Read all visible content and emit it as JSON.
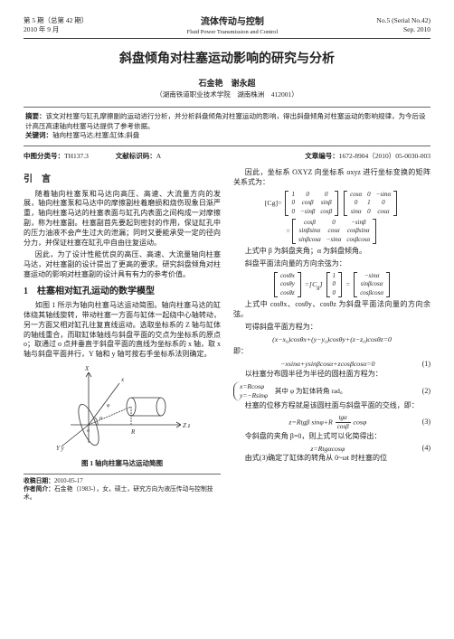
{
  "header": {
    "issue_cn": "第 5 期（总第 42 期）",
    "date_cn": "2010 年 9 月",
    "journal_cn": "流体传动与控制",
    "journal_en": "Fluid Power Transmission and Control",
    "issue_en": "No.5 (Serial No.42)",
    "date_en": "Sep. 2010"
  },
  "title": "斜盘倾角对柱塞运动影响的研究与分析",
  "authors": "石金艳　谢永超",
  "affiliation": "（湖南铁道职业技术学院　湖南株洲　412001）",
  "abstract_label": "摘要：",
  "abstract": "该文对柱塞与缸孔摩擦副的运动进行分析，并分析斜盘倾角对柱塞运动的影响，得出斜盘倾角对柱塞运动的影响规律，为今后设计高压高速轴向柱塞马达提供了参考依据。",
  "keywords_label": "关键词：",
  "keywords": "轴向柱塞马达;柱塞;缸体;斜盘",
  "meta": {
    "clc_label": "中图分类号：",
    "clc": "TH137.3",
    "doc_code_label": "文献标识码：",
    "doc_code": "A",
    "article_id_label": "文章编号：",
    "article_id": "1672-8904（2010）05-0030-003"
  },
  "sections": {
    "intro_title": "引　言",
    "intro_p1": "随着轴向柱塞泵和马达向高压、高速、大流量方向的发展，轴向柱塞泵和马达中的摩擦副柱着磨损和烧伤现象日渐严重，轴向柱塞马达的柱塞表面与缸孔内表面之间构成一对摩擦副，称为柱塞副。柱塞副首先要起到密封的作用，保证缸孔中的压力油液不会产生过大的泄漏；同时又要能承受一定的径向分力，并保证柱塞在缸孔中自由往复运动。",
    "intro_p2": "因此，为了设计性能优良的高压、高速、大流量轴向柱塞马达，对柱塞副的设计提出了更高的要求。研究斜盘倾角对柱塞运动的影响对柱塞副的设计具有有力的参考价值。",
    "sec1_title": "1　柱塞相对缸孔运动的数学模型",
    "sec1_p1": "如图 1 所示为轴向柱塞马达运动简图。轴向柱塞马达的缸体绕其轴线旋转，带动柱塞一方面与缸体一起绕中心轴转动，另一方面又相对缸孔往复直线运动。选取坐标系的 Z 轴与缸体的轴线重合，而取缸体轴线与斜盘平面的交点为坐标系的原点 o；取通过 o 点并垂直于斜盘平面的直线为坐标系的 x 轴，取 x 轴与斜盘平面并行，Y 轴和 y 轴可按右手坐标系法则确定。",
    "fig1_caption": "图 1 轴向柱塞马达运动简图",
    "col2_p1": "因此，坐标系 OXYZ 向坐标系 oxyz 进行坐标变换的矩阵关系式为：",
    "col2_p2": "上式中 β 为斜盘夹角；α 为斜盘倾角。",
    "col2_p3": "斜盘平面法向量的方向余弦为：",
    "col2_p4": "上式中 cosθx、cosθy、cosθz 为斜盘平面法向量的方向余弦。",
    "col2_p5": "可得斜盘平面方程为：",
    "eq1_body": "(x−x₀)cosθx+(y−y₀)cosθy+(z−z₀)cosθz=0",
    "eq1_text": "即：",
    "eq1b_body": "−xsinα+ysinβcosα+zcosβcosα=0",
    "eq1_num": "(1)",
    "col2_p6": "以柱塞分布圆半径为半径的圆柱面方程为：",
    "eq2_x": "x=Rcosφ",
    "eq2_y": "y=−Rsinφ",
    "eq2_note": "其中 φ 为缸体转角 rad。",
    "eq2_num": "(2)",
    "col2_p7": "柱塞的位移方程就是该圆柱面与斜盘平面的交线，即：",
    "eq3_body": "z=Rtgβ sinφ+R",
    "eq3_frac_num": "tgα",
    "eq3_frac_den": "cosβ",
    "eq3_tail": "cosφ",
    "eq3_num": "(3)",
    "col2_p8": "令斜盘的夹角 β=0，则上式可以化简得出：",
    "eq4_body": "z=Rtgαcosφ",
    "eq4_num": "(4)",
    "col2_p9": "由式(3)确定了缸体的转角从 0~ωt 时柱塞的位"
  },
  "footnote": {
    "recv_label": "收稿日期：",
    "recv": "2010-05-17",
    "auth_label": "作者简介：",
    "auth": "石金艳（1983-），女，硕士，研究方向为液压传动与控制技术。"
  },
  "figure_svg": {
    "stroke": "#333",
    "width": 170,
    "height": 110
  },
  "matrices": {
    "Cg_label": "[Cg]=",
    "m1": [
      [
        "1",
        "0",
        "0"
      ],
      [
        "0",
        "cosβ",
        "sinβ"
      ],
      [
        "0",
        "−sinβ",
        "cosβ"
      ]
    ],
    "m2": [
      [
        "cosα",
        "0",
        "−sinα"
      ],
      [
        "0",
        "1",
        "0"
      ],
      [
        "sinα",
        "0",
        "cosα"
      ]
    ],
    "m3": [
      [
        "cosβ",
        "0",
        "−sinβ"
      ],
      [
        "sinβsinα",
        "cosα",
        "cosβsinα"
      ],
      [
        "sinβcosα",
        "−sinα",
        "cosβcosα"
      ]
    ],
    "theta_vec": [
      [
        "cosθx"
      ],
      [
        "cosθy"
      ],
      [
        "cosθz"
      ]
    ],
    "unit_vec": [
      [
        "1"
      ],
      [
        "0"
      ],
      [
        "0"
      ]
    ],
    "res_vec": [
      [
        "−sinα"
      ],
      [
        "sinβcosα"
      ],
      [
        "cosβcosα"
      ]
    ]
  }
}
